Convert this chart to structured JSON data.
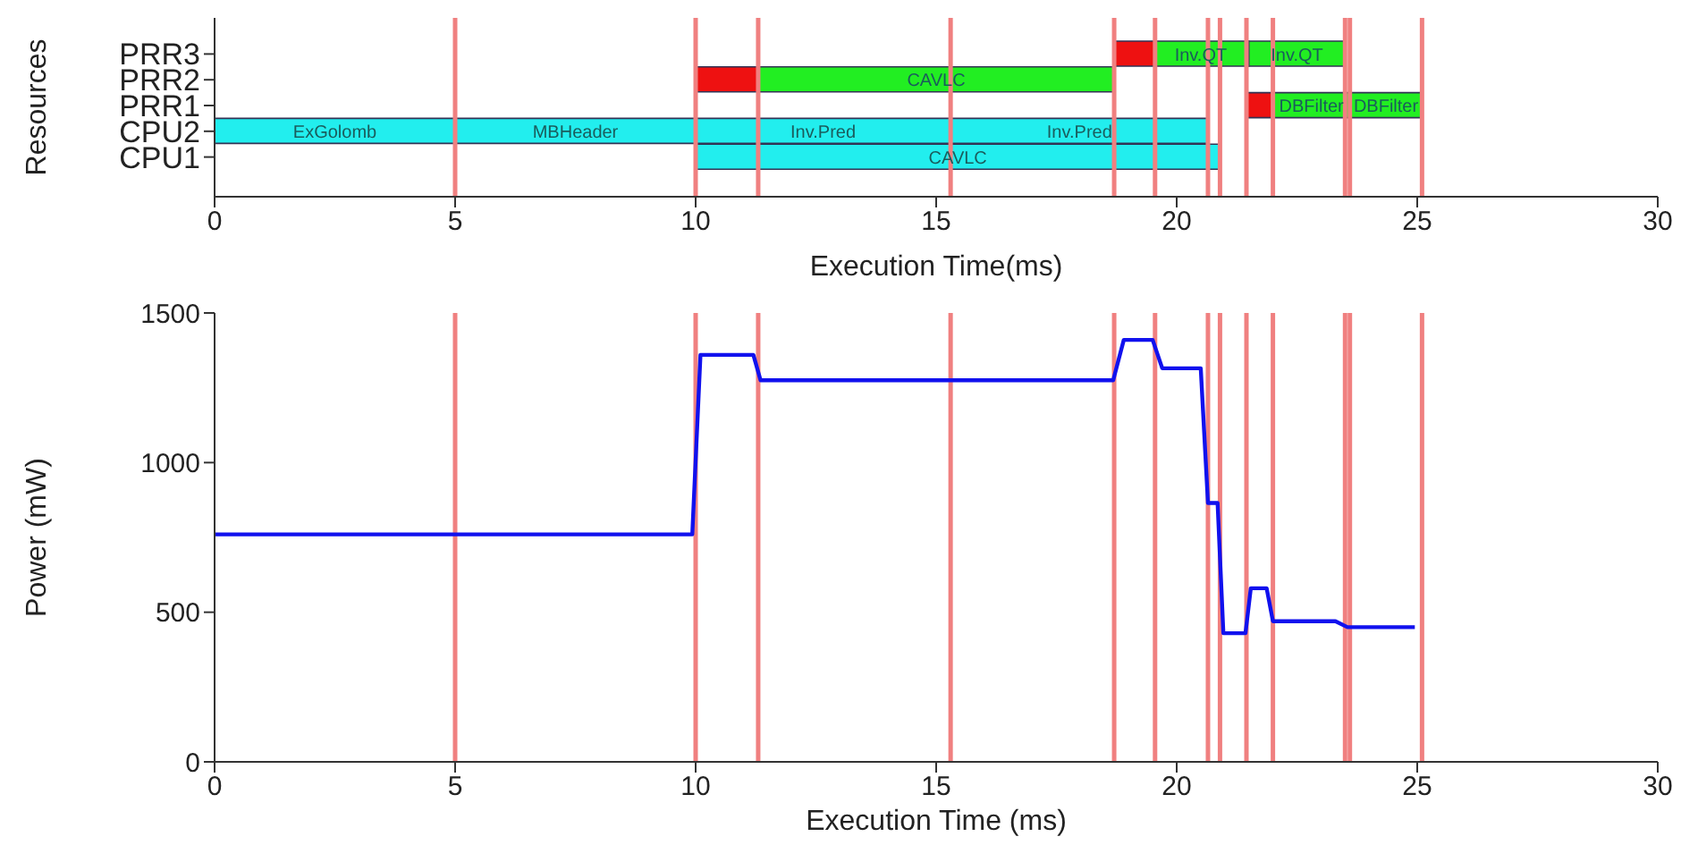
{
  "chart_data": [
    {
      "type": "bar",
      "orientation": "horizontal",
      "xlabel": "Execution Time(ms)",
      "ylabel": "Resources",
      "categories": [
        "PRR3",
        "PRR2",
        "PRR1",
        "CPU2",
        "CPU1"
      ],
      "series": [
        {
          "color": "#22eeee",
          "base": [
            null,
            null,
            null,
            0,
            10
          ],
          "values": [
            null,
            null,
            null,
            5,
            10.9
          ]
        },
        {
          "color": "#22eeee",
          "base": [
            null,
            null,
            null,
            5,
            null
          ],
          "values": [
            null,
            null,
            null,
            5,
            null
          ]
        },
        {
          "color": "#22eeee",
          "base": [
            null,
            null,
            null,
            10,
            null
          ],
          "values": [
            null,
            null,
            null,
            5.3,
            null
          ]
        },
        {
          "color": "#22eeee",
          "base": [
            null,
            null,
            null,
            15.3,
            null
          ],
          "values": [
            null,
            null,
            null,
            5.35,
            null
          ]
        },
        {
          "color": "#ee1111",
          "base": [
            18.7,
            10,
            21.45,
            null,
            null
          ],
          "values": [
            0.85,
            1.3,
            0.55,
            null,
            null
          ]
        },
        {
          "color": "#22ee22",
          "base": [
            19.55,
            11.3,
            22,
            null,
            null
          ],
          "values": [
            1.95,
            7.4,
            1.6,
            null,
            null
          ]
        },
        {
          "color": "#22ee22",
          "base": [
            21.5,
            null,
            23.6,
            null,
            null
          ],
          "values": [
            2,
            null,
            1.5,
            null,
            null
          ]
        }
      ],
      "annotations": [
        {
          "text": "ExGolomb",
          "x": 2.5,
          "y": "CPU2"
        },
        {
          "text": "MBHeader",
          "x": 7.5,
          "y": "CPU2"
        },
        {
          "text": "Inv.Pred",
          "x": 12.65,
          "y": "CPU2"
        },
        {
          "text": "Inv.Pred",
          "x": 17.98,
          "y": "CPU2"
        },
        {
          "text": "CAVLC",
          "x": 15.45,
          "y": "CPU1"
        },
        {
          "text": "CAVLC",
          "x": 15,
          "y": "PRR2"
        },
        {
          "text": "Inv.QT",
          "x": 20.5,
          "y": "PRR3"
        },
        {
          "text": "Inv.QT",
          "x": 22.5,
          "y": "PRR3"
        },
        {
          "text": "DBFilter",
          "x": 22.8,
          "y": "PRR1"
        },
        {
          "text": "DBFilter",
          "x": 24.35,
          "y": "PRR1"
        }
      ],
      "xlim": [
        0,
        30
      ],
      "xticks": [
        0,
        5,
        10,
        15,
        20,
        25,
        30
      ],
      "ref_lines": [
        {
          "axis": "x",
          "value": 5,
          "color": "#f08080"
        },
        {
          "axis": "x",
          "value": 10,
          "color": "#f08080"
        },
        {
          "axis": "x",
          "value": 11.3,
          "color": "#f08080"
        },
        {
          "axis": "x",
          "value": 15.3,
          "color": "#f08080"
        },
        {
          "axis": "x",
          "value": 18.7,
          "color": "#f08080"
        },
        {
          "axis": "x",
          "value": 19.55,
          "color": "#f08080"
        },
        {
          "axis": "x",
          "value": 20.65,
          "color": "#f08080"
        },
        {
          "axis": "x",
          "value": 20.9,
          "color": "#f08080"
        },
        {
          "axis": "x",
          "value": 21.45,
          "color": "#f08080"
        },
        {
          "axis": "x",
          "value": 22,
          "color": "#f08080"
        },
        {
          "axis": "x",
          "value": 23.5,
          "color": "#f08080"
        },
        {
          "axis": "x",
          "value": 23.6,
          "color": "#f08080"
        },
        {
          "axis": "x",
          "value": 25.1,
          "color": "#f08080"
        }
      ]
    },
    {
      "type": "line",
      "xlabel": "Execution Time (ms)",
      "ylabel": "Power (mW)",
      "marker": "none",
      "line_style": "solid",
      "x": [
        0,
        9.93,
        10.1,
        11.2,
        11.35,
        18.68,
        18.9,
        19.5,
        19.7,
        20.5,
        20.65,
        20.85,
        20.97,
        21.43,
        21.54,
        21.87,
        22.0,
        23.3,
        23.55,
        24.95
      ],
      "series": [
        {
          "color": "#1111ee",
          "values": [
            760,
            760,
            1360,
            1360,
            1275,
            1275,
            1410,
            1410,
            1315,
            1315,
            865,
            865,
            430,
            430,
            580,
            580,
            470,
            470,
            450,
            450
          ]
        }
      ],
      "xlim": [
        0,
        30
      ],
      "xticks": [
        0,
        5,
        10,
        15,
        20,
        25,
        30
      ],
      "ylim": [
        0,
        1500
      ],
      "yticks": [
        0,
        500,
        1000,
        1500
      ],
      "ref_lines": [
        {
          "axis": "x",
          "value": 5,
          "color": "#f08080"
        },
        {
          "axis": "x",
          "value": 10,
          "color": "#f08080"
        },
        {
          "axis": "x",
          "value": 11.3,
          "color": "#f08080"
        },
        {
          "axis": "x",
          "value": 15.3,
          "color": "#f08080"
        },
        {
          "axis": "x",
          "value": 18.7,
          "color": "#f08080"
        },
        {
          "axis": "x",
          "value": 19.55,
          "color": "#f08080"
        },
        {
          "axis": "x",
          "value": 20.65,
          "color": "#f08080"
        },
        {
          "axis": "x",
          "value": 20.9,
          "color": "#f08080"
        },
        {
          "axis": "x",
          "value": 21.45,
          "color": "#f08080"
        },
        {
          "axis": "x",
          "value": 22,
          "color": "#f08080"
        },
        {
          "axis": "x",
          "value": 23.5,
          "color": "#f08080"
        },
        {
          "axis": "x",
          "value": 23.6,
          "color": "#f08080"
        },
        {
          "axis": "x",
          "value": 25.1,
          "color": "#f08080"
        }
      ]
    }
  ]
}
